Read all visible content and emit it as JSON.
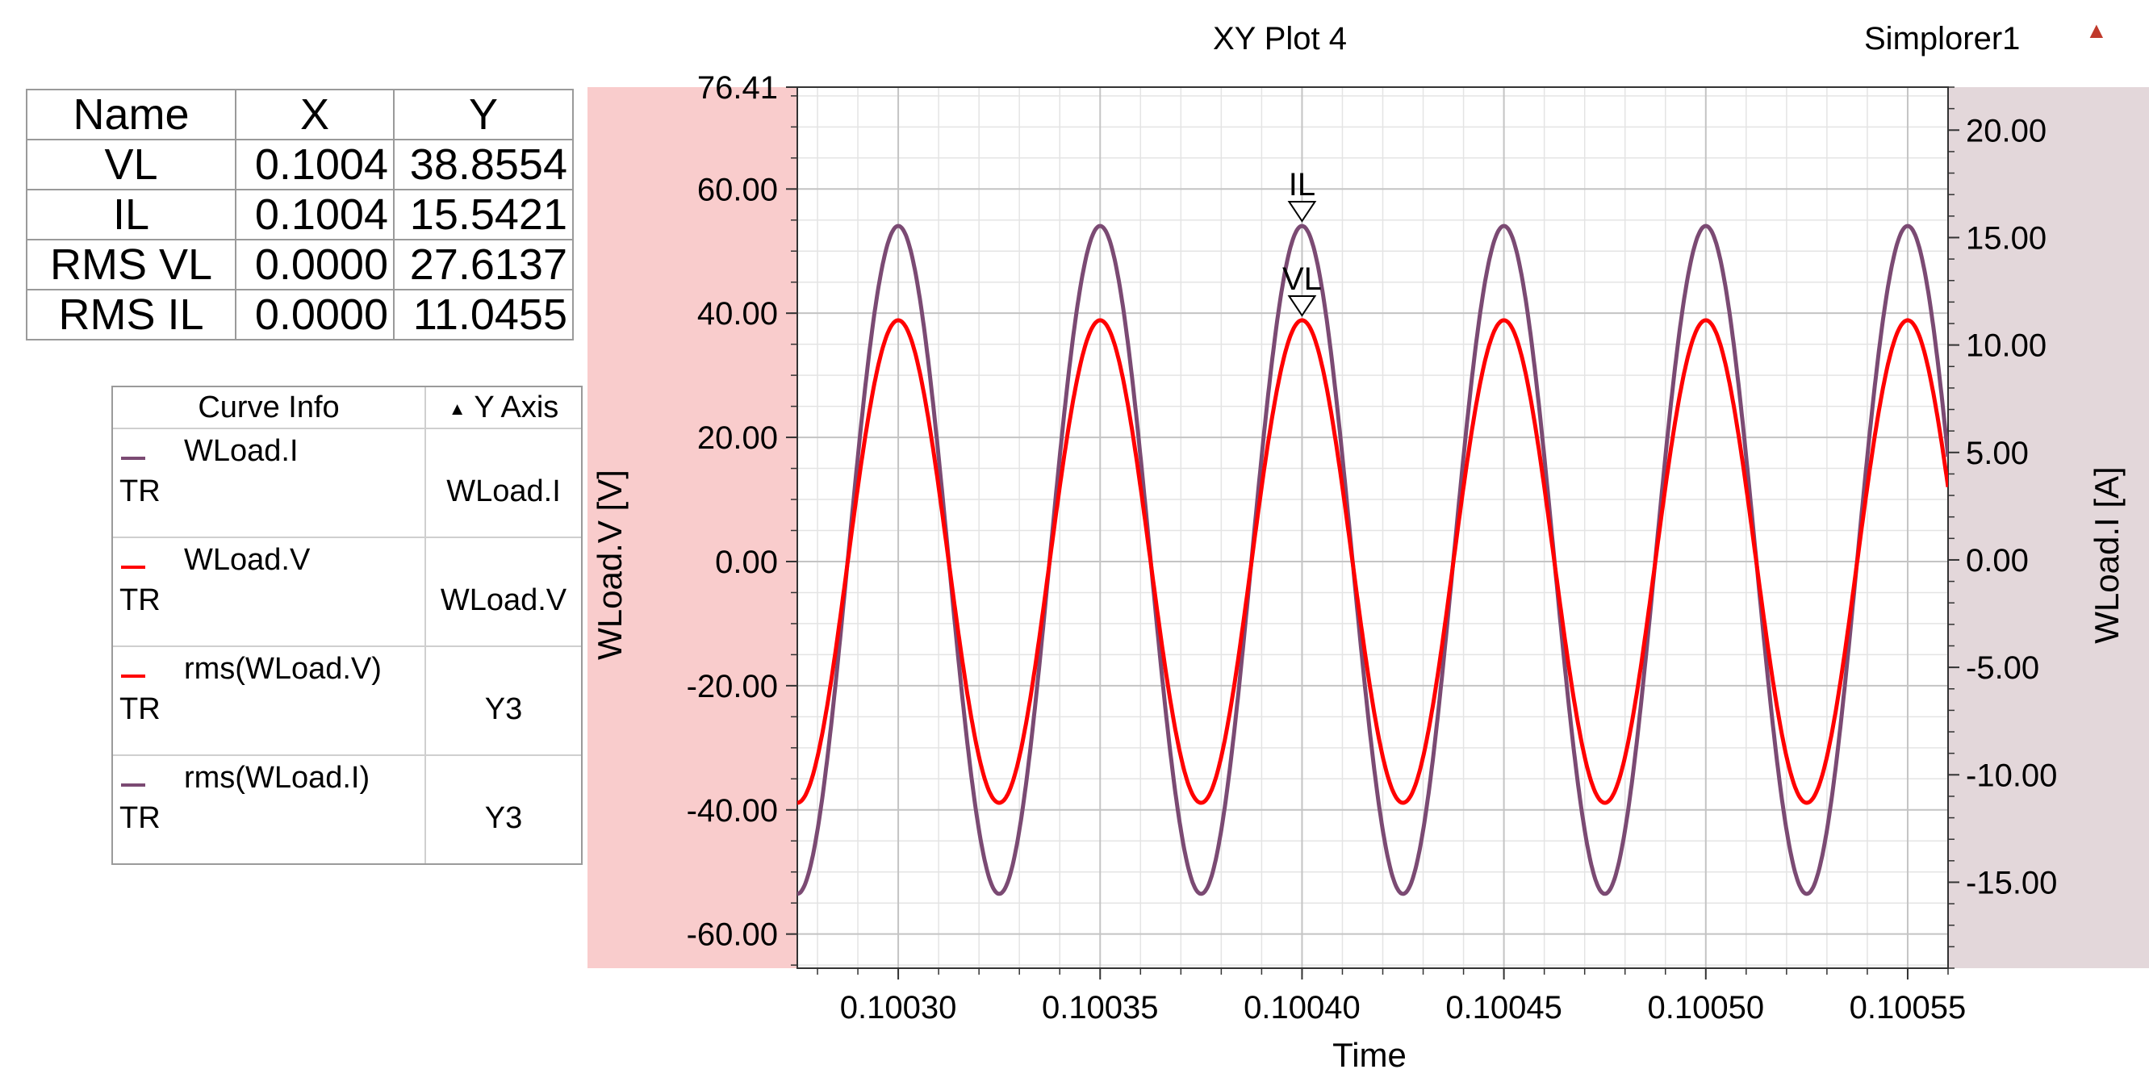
{
  "header": {
    "plot_title": "XY Plot 4",
    "app_name": "Simplorer1",
    "app_icon": "ansys-logo-icon"
  },
  "marker_table": {
    "columns": [
      "Name",
      "X",
      "Y"
    ],
    "rows": [
      {
        "name": "VL",
        "x": "0.1004",
        "y": "38.8554"
      },
      {
        "name": "IL",
        "x": "0.1004",
        "y": "15.5421"
      },
      {
        "name": "RMS VL",
        "x": "0.0000",
        "y": "27.6137"
      },
      {
        "name": "RMS IL",
        "x": "0.0000",
        "y": "11.0455"
      }
    ]
  },
  "legend": {
    "col_curve": "Curve Info",
    "col_axis": "Y Axis",
    "sort_icon": "sort-arrow-icon",
    "items": [
      {
        "name": "WLoad.I",
        "context": "TR",
        "axis": "WLoad.I",
        "color": "#7b4a73"
      },
      {
        "name": "WLoad.V",
        "context": "TR",
        "axis": "WLoad.V",
        "color": "#ff0000"
      },
      {
        "name": "rms(WLoad.V)",
        "context": "TR",
        "axis": "Y3",
        "color": "#ff0000"
      },
      {
        "name": "rms(WLoad.I)",
        "context": "TR",
        "axis": "Y3",
        "color": "#7b4a73"
      }
    ]
  },
  "chart_data": {
    "type": "line",
    "title": "XY Plot 4",
    "xlabel": "Time",
    "ylabel_left": "WLoad.V [V]",
    "ylabel_right": "WLoad.I [A]",
    "xlim": [
      0.100275,
      0.10056
    ],
    "ylim_left": [
      -65.5,
      76.41
    ],
    "ylim_right": [
      -19.0,
      22.0
    ],
    "x_ticks": [
      "0.10030",
      "0.10035",
      "0.10040",
      "0.10045",
      "0.10050",
      "0.10055"
    ],
    "x_tick_values": [
      0.1003,
      0.10035,
      0.1004,
      0.10045,
      0.1005,
      0.10055
    ],
    "y_left_ticks": [
      "76.41",
      "60.00",
      "40.00",
      "20.00",
      "0.00",
      "-20.00",
      "-40.00",
      "-60.00"
    ],
    "y_left_tick_values": [
      76.41,
      60,
      40,
      20,
      0,
      -20,
      -40,
      -60
    ],
    "y_right_ticks": [
      "20.00",
      "15.00",
      "10.00",
      "5.00",
      "0.00",
      "-5.00",
      "-10.00",
      "-15.00"
    ],
    "y_right_tick_values": [
      20,
      15,
      10,
      5,
      0,
      -5,
      -10,
      -15
    ],
    "grid": true,
    "series": [
      {
        "name": "WLoad.I",
        "axis": "right",
        "color": "#7b4a73",
        "amplitude": 15.54,
        "frequency_hz": 20000,
        "peak_time": 0.1003
      },
      {
        "name": "WLoad.V",
        "axis": "left",
        "color": "#ff0000",
        "amplitude": 38.86,
        "frequency_hz": 20000,
        "peak_time": 0.1003
      }
    ],
    "markers": [
      {
        "label": "IL",
        "x": 0.1004,
        "y": 15.5421,
        "axis": "right"
      },
      {
        "label": "VL",
        "x": 0.1004,
        "y": 38.8554,
        "axis": "left"
      }
    ],
    "colors": {
      "left_axis_band": "#f9cccc",
      "right_axis_band": "#e3d7da"
    }
  }
}
